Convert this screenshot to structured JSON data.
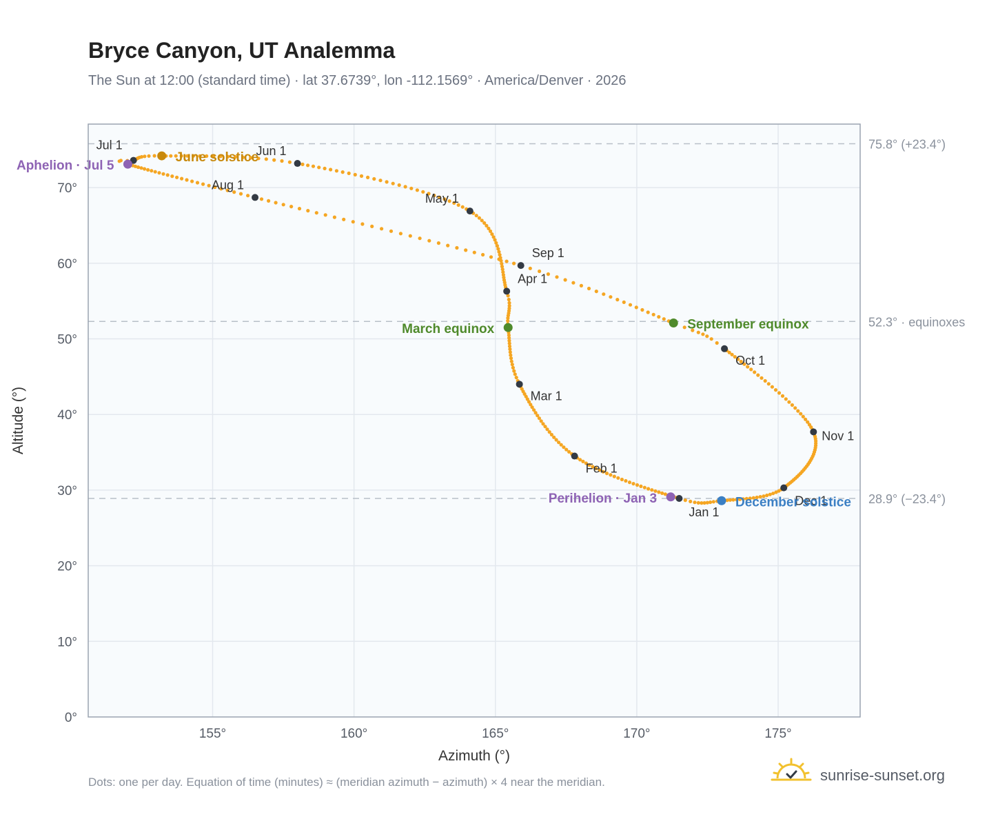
{
  "header": {
    "title": "Bryce Canyon, UT Analemma",
    "subtitle": "The Sun at 12:00 (standard time) · lat 37.6739°, lon -112.1569° · America/Denver · 2026"
  },
  "footer": {
    "note": "Dots: one per day. Equation of time (minutes) ≈ (meridian azimuth − azimuth) × 4 near the meridian.",
    "brand": "sunrise-sunset.org",
    "brand_icon": "sun-check-icon"
  },
  "colors": {
    "path": "#f5a623",
    "month_dot": "#333a44",
    "june_solstice": "#c8890c",
    "equinox": "#4f8a2b",
    "december_solstice": "#3b7fc4",
    "apsis": "#8e63b4",
    "reference_line": "#b8bfc8",
    "plot_bg": "#f8fbfd",
    "grid": "#e3e8ee",
    "border": "#9aa3b0"
  },
  "chart_data": {
    "type": "scatter",
    "xlabel": "Azimuth (°)",
    "ylabel": "Altitude (°)",
    "xlim": [
      150.6,
      177.9
    ],
    "ylim": [
      0,
      78.4
    ],
    "xticks": [
      155,
      160,
      165,
      170,
      175
    ],
    "xtick_labels": [
      "155°",
      "160°",
      "165°",
      "170°",
      "175°"
    ],
    "yticks": [
      0,
      10,
      20,
      30,
      40,
      50,
      60,
      70
    ],
    "ytick_labels": [
      "0°",
      "10°",
      "20°",
      "30°",
      "40°",
      "50°",
      "60°",
      "70°"
    ],
    "grid": true,
    "path_anchors": [
      {
        "day": 1,
        "az": 171.5,
        "alt": 28.9
      },
      {
        "day": 32,
        "az": 167.8,
        "alt": 34.5
      },
      {
        "day": 60,
        "az": 165.85,
        "alt": 44.0
      },
      {
        "day": 79,
        "az": 165.45,
        "alt": 51.5
      },
      {
        "day": 91,
        "az": 165.4,
        "alt": 56.3
      },
      {
        "day": 121,
        "az": 164.1,
        "alt": 66.9
      },
      {
        "day": 152,
        "az": 158.0,
        "alt": 73.2
      },
      {
        "day": 172,
        "az": 153.2,
        "alt": 74.2
      },
      {
        "day": 182,
        "az": 152.2,
        "alt": 73.6
      },
      {
        "day": 186,
        "az": 152.0,
        "alt": 73.1
      },
      {
        "day": 213,
        "az": 156.5,
        "alt": 68.7
      },
      {
        "day": 244,
        "az": 165.9,
        "alt": 59.7
      },
      {
        "day": 266,
        "az": 171.3,
        "alt": 52.1
      },
      {
        "day": 274,
        "az": 173.1,
        "alt": 48.7
      },
      {
        "day": 305,
        "az": 176.25,
        "alt": 37.7
      },
      {
        "day": 335,
        "az": 175.2,
        "alt": 30.3
      },
      {
        "day": 355,
        "az": 173.0,
        "alt": 28.6
      },
      {
        "day": 366,
        "az": 171.5,
        "alt": 28.9
      }
    ],
    "month_markers": [
      {
        "label": "Jan 1",
        "az": 171.5,
        "alt": 28.9
      },
      {
        "label": "Feb 1",
        "az": 167.8,
        "alt": 34.5
      },
      {
        "label": "Mar 1",
        "az": 165.85,
        "alt": 44.0
      },
      {
        "label": "Apr 1",
        "az": 165.4,
        "alt": 56.3
      },
      {
        "label": "May 1",
        "az": 164.1,
        "alt": 66.9
      },
      {
        "label": "Jun 1",
        "az": 158.0,
        "alt": 73.2
      },
      {
        "label": "Jul 1",
        "az": 152.2,
        "alt": 73.6
      },
      {
        "label": "Aug 1",
        "az": 156.5,
        "alt": 68.7
      },
      {
        "label": "Sep 1",
        "az": 165.9,
        "alt": 59.7
      },
      {
        "label": "Oct 1",
        "az": 173.1,
        "alt": 48.7
      },
      {
        "label": "Nov 1",
        "az": 176.25,
        "alt": 37.7
      },
      {
        "label": "Dec 1",
        "az": 175.2,
        "alt": 30.3
      }
    ],
    "events": [
      {
        "label": "June solstice",
        "az": 153.2,
        "alt": 74.2,
        "color": "june_solstice"
      },
      {
        "label": "Aphelion · Jul 5",
        "az": 152.0,
        "alt": 73.1,
        "color": "apsis"
      },
      {
        "label": "March equinox",
        "az": 165.45,
        "alt": 51.5,
        "color": "equinox"
      },
      {
        "label": "September equinox",
        "az": 171.3,
        "alt": 52.1,
        "color": "equinox"
      },
      {
        "label": "Perihelion · Jan 3",
        "az": 171.2,
        "alt": 29.1,
        "color": "apsis"
      },
      {
        "label": "December solstice",
        "az": 173.0,
        "alt": 28.6,
        "color": "december_solstice"
      }
    ],
    "reference_lines": [
      {
        "alt": 75.8,
        "label": "75.8° (+23.4°)"
      },
      {
        "alt": 52.3,
        "label": "52.3° · equinoxes"
      },
      {
        "alt": 28.9,
        "label": "28.9° (−23.4°)"
      }
    ]
  }
}
